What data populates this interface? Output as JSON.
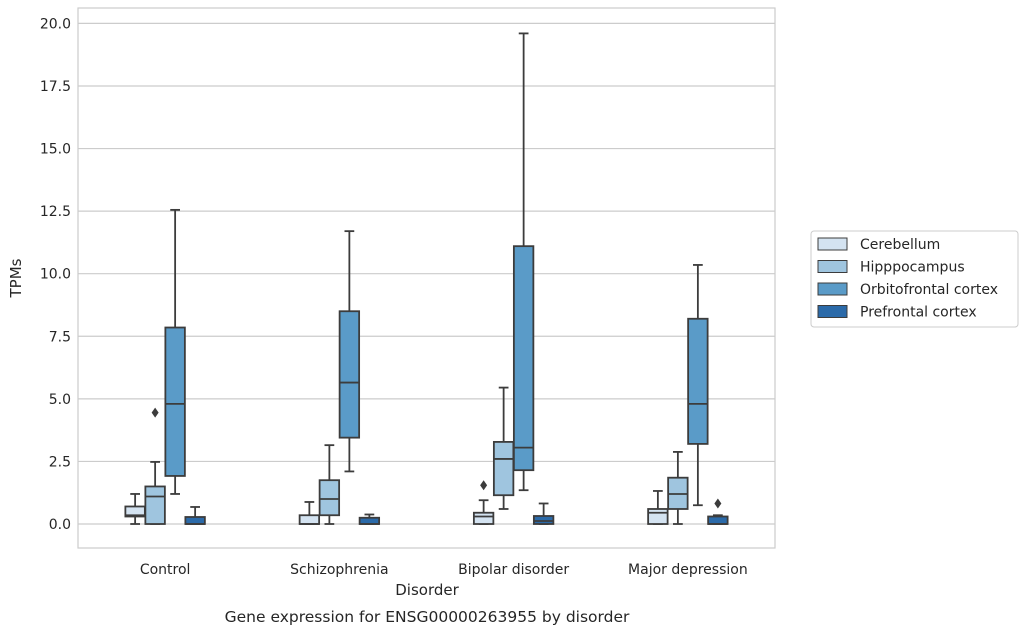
{
  "chart_data": {
    "type": "box",
    "xlabel": "Disorder",
    "ylabel": "TPMs",
    "caption": "Gene expression for ENSG00000263955 by disorder",
    "ylim": [
      -0.95,
      20.5
    ],
    "yticks": [
      "0.0",
      "2.5",
      "5.0",
      "7.5",
      "10.0",
      "12.5",
      "15.0",
      "17.5",
      "20.0"
    ],
    "grid": "horizontal",
    "legend_position": "right",
    "categories": [
      "Control",
      "Schizophrenia",
      "Bipolar disorder",
      "Major depression"
    ],
    "series": [
      {
        "name": "Cerebellum",
        "color": "#d4e3f1",
        "boxes": [
          {
            "whislo": 0.0,
            "q1": 0.3,
            "med": 0.35,
            "q3": 0.7,
            "whishi": 1.2,
            "fliers": []
          },
          {
            "whislo": 0.0,
            "q1": 0.0,
            "med": 0.0,
            "q3": 0.35,
            "whishi": 0.88,
            "fliers": []
          },
          {
            "whislo": 0.0,
            "q1": 0.0,
            "med": 0.3,
            "q3": 0.45,
            "whishi": 0.95,
            "fliers": [
              1.55
            ]
          },
          {
            "whislo": 0.0,
            "q1": 0.0,
            "med": 0.45,
            "q3": 0.6,
            "whishi": 1.32,
            "fliers": []
          }
        ]
      },
      {
        "name": "Hipppocampus",
        "color": "#9fc5df",
        "boxes": [
          {
            "whislo": 0.0,
            "q1": 0.0,
            "med": 1.1,
            "q3": 1.5,
            "whishi": 2.48,
            "fliers": [
              4.45
            ]
          },
          {
            "whislo": 0.0,
            "q1": 0.35,
            "med": 1.0,
            "q3": 1.75,
            "whishi": 3.15,
            "fliers": []
          },
          {
            "whislo": 0.6,
            "q1": 1.15,
            "med": 2.6,
            "q3": 3.28,
            "whishi": 5.45,
            "fliers": []
          },
          {
            "whislo": 0.0,
            "q1": 0.6,
            "med": 1.2,
            "q3": 1.85,
            "whishi": 2.88,
            "fliers": []
          }
        ]
      },
      {
        "name": "Orbitofrontal cortex",
        "color": "#5a9bc8",
        "boxes": [
          {
            "whislo": 1.2,
            "q1": 1.92,
            "med": 4.8,
            "q3": 7.85,
            "whishi": 12.55,
            "fliers": []
          },
          {
            "whislo": 2.1,
            "q1": 3.45,
            "med": 5.65,
            "q3": 8.5,
            "whishi": 11.7,
            "fliers": []
          },
          {
            "whislo": 1.35,
            "q1": 2.15,
            "med": 3.05,
            "q3": 11.1,
            "whishi": 19.6,
            "fliers": []
          },
          {
            "whislo": 0.75,
            "q1": 3.2,
            "med": 4.8,
            "q3": 8.2,
            "whishi": 10.35,
            "fliers": []
          }
        ]
      },
      {
        "name": "Prefrontal cortex",
        "color": "#2b6aa9",
        "boxes": [
          {
            "whislo": 0.0,
            "q1": 0.0,
            "med": 0.0,
            "q3": 0.28,
            "whishi": 0.68,
            "fliers": []
          },
          {
            "whislo": 0.0,
            "q1": 0.0,
            "med": 0.0,
            "q3": 0.25,
            "whishi": 0.38,
            "fliers": []
          },
          {
            "whislo": 0.0,
            "q1": 0.0,
            "med": 0.12,
            "q3": 0.32,
            "whishi": 0.82,
            "fliers": []
          },
          {
            "whislo": 0.0,
            "q1": 0.0,
            "med": 0.0,
            "q3": 0.3,
            "whishi": 0.35,
            "fliers": [
              0.82
            ]
          }
        ]
      }
    ]
  }
}
